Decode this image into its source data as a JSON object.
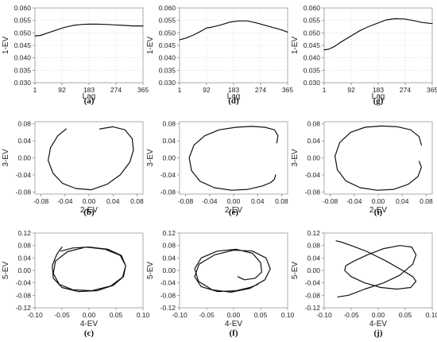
{
  "chart_data": [
    {
      "panel": "a",
      "caption": "(a)",
      "type": "line",
      "xlabel": "Lag",
      "ylabel": "1-EV",
      "xlim": [
        1,
        365
      ],
      "ylim": [
        0.03,
        0.06
      ],
      "xticks": [
        1,
        92,
        183,
        274,
        365
      ],
      "xtick_labels": [
        "1",
        "92",
        "183",
        "274",
        "365"
      ],
      "yticks": [
        0.03,
        0.035,
        0.04,
        0.045,
        0.05,
        0.055,
        0.06
      ],
      "ytick_labels": [
        "0.030",
        "0.035",
        "0.040",
        "0.045",
        "0.050",
        "0.055",
        "0.060"
      ],
      "grid": true,
      "series": [
        {
          "x": [
            1,
            20,
            45,
            70,
            100,
            130,
            160,
            183,
            210,
            240,
            270,
            300,
            330,
            365
          ],
          "y": [
            0.0488,
            0.049,
            0.05,
            0.051,
            0.0522,
            0.053,
            0.0534,
            0.0535,
            0.0535,
            0.0534,
            0.0532,
            0.053,
            0.0528,
            0.0528
          ]
        }
      ]
    },
    {
      "panel": "d",
      "caption": "(d)",
      "type": "line",
      "xlabel": "Lag",
      "ylabel": "1-EV",
      "xlim": [
        1,
        365
      ],
      "ylim": [
        0.03,
        0.06
      ],
      "xticks": [
        1,
        92,
        183,
        274,
        365
      ],
      "xtick_labels": [
        "1",
        "92",
        "183",
        "274",
        "365"
      ],
      "yticks": [
        0.03,
        0.035,
        0.04,
        0.045,
        0.05,
        0.055,
        0.06
      ],
      "ytick_labels": [
        "0.030",
        "0.035",
        "0.040",
        "0.045",
        "0.050",
        "0.055",
        "0.060"
      ],
      "grid": true,
      "series": [
        {
          "x": [
            1,
            20,
            45,
            70,
            92,
            110,
            140,
            170,
            200,
            230,
            260,
            290,
            320,
            345,
            365
          ],
          "y": [
            0.0472,
            0.0478,
            0.049,
            0.0505,
            0.052,
            0.0523,
            0.0532,
            0.0543,
            0.0548,
            0.0548,
            0.054,
            0.053,
            0.052,
            0.0512,
            0.0503
          ]
        }
      ]
    },
    {
      "panel": "g",
      "caption": "(g)",
      "type": "line",
      "xlabel": "Lag",
      "ylabel": "1-EV",
      "xlim": [
        1,
        365
      ],
      "ylim": [
        0.03,
        0.06
      ],
      "xticks": [
        1,
        92,
        183,
        274,
        365
      ],
      "xtick_labels": [
        "1",
        "92",
        "183",
        "274",
        "365"
      ],
      "yticks": [
        0.03,
        0.035,
        0.04,
        0.045,
        0.05,
        0.055,
        0.06
      ],
      "ytick_labels": [
        "0.030",
        "0.035",
        "0.040",
        "0.045",
        "0.050",
        "0.055",
        "0.060"
      ],
      "grid": true,
      "series": [
        {
          "x": [
            1,
            15,
            35,
            60,
            92,
            120,
            150,
            183,
            210,
            240,
            270,
            300,
            330,
            365
          ],
          "y": [
            0.0432,
            0.0434,
            0.0445,
            0.0465,
            0.0488,
            0.0508,
            0.0525,
            0.054,
            0.0552,
            0.0557,
            0.0556,
            0.055,
            0.0542,
            0.0537
          ]
        }
      ]
    },
    {
      "panel": "b",
      "caption": "(b)",
      "type": "line",
      "xlabel": "2-EV",
      "ylabel": "3-EV",
      "xlim": [
        -0.09,
        0.09
      ],
      "ylim": [
        -0.085,
        0.085
      ],
      "xticks": [
        -0.08,
        -0.04,
        0,
        0.04,
        0.08
      ],
      "xtick_labels": [
        "-0.08",
        "-0.04",
        "0.00",
        "0.04",
        "0.08"
      ],
      "yticks": [
        -0.08,
        -0.04,
        0,
        0.04,
        0.08
      ],
      "ytick_labels": [
        "-0.08",
        "-0.04",
        "0.00",
        "0.04",
        "0.08"
      ],
      "grid": false,
      "series": [
        {
          "x": [
            0.018,
            0.04,
            0.06,
            0.072,
            0.074,
            0.068,
            0.052,
            0.03,
            0.004,
            -0.022,
            -0.044,
            -0.06,
            -0.068,
            -0.064,
            -0.052,
            -0.038
          ],
          "y": [
            0.068,
            0.073,
            0.066,
            0.045,
            0.018,
            -0.01,
            -0.04,
            -0.062,
            -0.075,
            -0.072,
            -0.06,
            -0.036,
            -0.006,
            0.024,
            0.052,
            0.068
          ]
        }
      ]
    },
    {
      "panel": "e",
      "caption": "(e)",
      "type": "line",
      "xlabel": "2-EV",
      "ylabel": "3-EV",
      "xlim": [
        -0.09,
        0.09
      ],
      "ylim": [
        -0.085,
        0.085
      ],
      "xticks": [
        -0.08,
        -0.04,
        0,
        0.04,
        0.08
      ],
      "xtick_labels": [
        "-0.08",
        "-0.04",
        "0.00",
        "0.04",
        "0.08"
      ],
      "yticks": [
        -0.08,
        -0.04,
        0,
        0.04,
        0.08
      ],
      "ytick_labels": [
        "-0.08",
        "-0.04",
        "0.00",
        "0.04",
        "0.08"
      ],
      "grid": false,
      "series": [
        {
          "x": [
            0.072,
            0.074,
            0.068,
            0.052,
            0.03,
            0.004,
            -0.024,
            -0.048,
            -0.066,
            -0.074,
            -0.07,
            -0.056,
            -0.032,
            -0.004,
            0.024,
            0.048,
            0.062,
            0.068,
            0.07
          ],
          "y": [
            0.035,
            0.052,
            0.066,
            0.072,
            0.074,
            0.072,
            0.066,
            0.052,
            0.03,
            0.0,
            -0.03,
            -0.055,
            -0.07,
            -0.076,
            -0.074,
            -0.066,
            -0.058,
            -0.05,
            -0.04
          ]
        }
      ]
    },
    {
      "panel": "i",
      "caption": "(i)",
      "type": "line",
      "xlabel": "2-EV",
      "ylabel": "3-EV",
      "xlim": [
        -0.09,
        0.09
      ],
      "ylim": [
        -0.085,
        0.085
      ],
      "xticks": [
        -0.08,
        -0.04,
        0,
        0.04,
        0.08
      ],
      "xtick_labels": [
        "-0.08",
        "-0.04",
        "0.00",
        "0.04",
        "0.08"
      ],
      "yticks": [
        -0.08,
        -0.04,
        0,
        0.04,
        0.08
      ],
      "ytick_labels": [
        "-0.08",
        "-0.04",
        "0.00",
        "0.04",
        "0.08"
      ],
      "grid": false,
      "series": [
        {
          "x": [
            0.072,
            0.068,
            0.054,
            0.032,
            0.006,
            -0.022,
            -0.046,
            -0.064,
            -0.072,
            -0.068,
            -0.054,
            -0.03,
            -0.002,
            0.026,
            0.05,
            0.066,
            0.072,
            0.068
          ],
          "y": [
            0.03,
            0.05,
            0.066,
            0.073,
            0.075,
            0.072,
            0.06,
            0.036,
            0.004,
            -0.028,
            -0.054,
            -0.07,
            -0.076,
            -0.074,
            -0.062,
            -0.044,
            -0.022,
            -0.008
          ]
        }
      ]
    },
    {
      "panel": "c",
      "caption": "(c)",
      "type": "line",
      "xlabel": "4-EV",
      "ylabel": "5-EV",
      "xlim": [
        -0.1,
        0.1
      ],
      "ylim": [
        -0.12,
        0.12
      ],
      "xticks": [
        -0.1,
        -0.05,
        0,
        0.05,
        0.1
      ],
      "xtick_labels": [
        "-0.10",
        "-0.05",
        "0.00",
        "0.05",
        "0.10"
      ],
      "yticks": [
        -0.12,
        -0.08,
        -0.04,
        0,
        0.04,
        0.08,
        0.12
      ],
      "ytick_labels": [
        "-0.12",
        "-0.08",
        "-0.04",
        "0.00",
        "0.04",
        "0.08",
        "0.12"
      ],
      "grid": false,
      "series": [
        {
          "x": [
            -0.05,
            -0.06,
            -0.068,
            -0.066,
            -0.05,
            -0.02,
            0.015,
            0.045,
            0.064,
            0.068,
            0.058,
            0.03,
            -0.005,
            -0.04,
            -0.062,
            -0.066,
            -0.055,
            -0.03,
            0.005,
            0.04,
            0.062,
            0.068,
            0.06,
            0.035,
            0.0,
            -0.03,
            -0.052
          ],
          "y": [
            0.075,
            0.05,
            0.015,
            -0.025,
            -0.055,
            -0.068,
            -0.065,
            -0.048,
            -0.02,
            0.015,
            0.048,
            0.068,
            0.075,
            0.06,
            0.03,
            -0.01,
            -0.045,
            -0.062,
            -0.065,
            -0.05,
            -0.022,
            0.015,
            0.048,
            0.068,
            0.075,
            0.072,
            0.062
          ]
        }
      ]
    },
    {
      "panel": "f",
      "caption": "(f)",
      "type": "line",
      "xlabel": "4-EV",
      "ylabel": "5-EV",
      "xlim": [
        -0.1,
        0.1
      ],
      "ylim": [
        -0.12,
        0.12
      ],
      "xticks": [
        -0.1,
        -0.05,
        0,
        0.05,
        0.1
      ],
      "xtick_labels": [
        "-0.10",
        "-0.05",
        "0.00",
        "0.05",
        "0.10"
      ],
      "yticks": [
        -0.12,
        -0.08,
        -0.04,
        0,
        0.04,
        0.08,
        0.12
      ],
      "ytick_labels": [
        "-0.12",
        "-0.08",
        "-0.04",
        "0.00",
        "0.04",
        "0.08",
        "0.12"
      ],
      "grid": false,
      "series": [
        {
          "x": [
            0.045,
            0.03,
            0.005,
            -0.03,
            -0.06,
            -0.072,
            -0.064,
            -0.035,
            0.0,
            0.035,
            0.06,
            0.068,
            0.058,
            0.03,
            -0.005,
            -0.04,
            -0.065,
            -0.072,
            -0.06,
            -0.03,
            0.005,
            0.035,
            0.05,
            0.052,
            0.04,
            0.02,
            0.008
          ],
          "y": [
            -0.045,
            -0.055,
            -0.065,
            -0.068,
            -0.052,
            -0.02,
            0.02,
            0.05,
            0.065,
            0.062,
            0.04,
            0.005,
            -0.03,
            -0.058,
            -0.07,
            -0.062,
            -0.035,
            0.005,
            0.04,
            0.062,
            0.068,
            0.055,
            0.025,
            -0.005,
            -0.025,
            -0.03,
            -0.02
          ]
        }
      ]
    },
    {
      "panel": "j",
      "caption": "(j)",
      "type": "line",
      "xlabel": "4-EV",
      "ylabel": "5-EV",
      "xlim": [
        -0.1,
        0.1
      ],
      "ylim": [
        -0.12,
        0.12
      ],
      "xticks": [
        -0.1,
        -0.05,
        0,
        0.05,
        0.1
      ],
      "xtick_labels": [
        "-0.10",
        "-0.05",
        "0.00",
        "0.05",
        "0.10"
      ],
      "yticks": [
        -0.12,
        -0.08,
        -0.04,
        0,
        0.04,
        0.08,
        0.12
      ],
      "ytick_labels": [
        "-0.12",
        "-0.08",
        "-0.04",
        "0.00",
        "0.04",
        "0.08",
        "0.12"
      ],
      "grid": false,
      "series": [
        {
          "x": [
            -0.078,
            -0.07,
            -0.05,
            -0.02,
            0.015,
            0.045,
            0.064,
            0.07,
            0.06,
            0.035,
            0.005,
            -0.025,
            -0.05,
            -0.062,
            -0.06,
            -0.045,
            -0.02,
            0.01,
            0.04,
            0.062,
            0.07,
            0.064,
            0.04,
            0.01,
            -0.025,
            -0.055,
            -0.075
          ],
          "y": [
            0.095,
            0.092,
            0.08,
            0.06,
            0.03,
            0.0,
            -0.02,
            -0.035,
            -0.055,
            -0.06,
            -0.055,
            -0.04,
            -0.02,
            0.0,
            0.015,
            0.03,
            0.05,
            0.07,
            0.08,
            0.075,
            0.05,
            0.02,
            -0.015,
            -0.04,
            -0.06,
            -0.08,
            -0.085
          ]
        }
      ]
    }
  ]
}
